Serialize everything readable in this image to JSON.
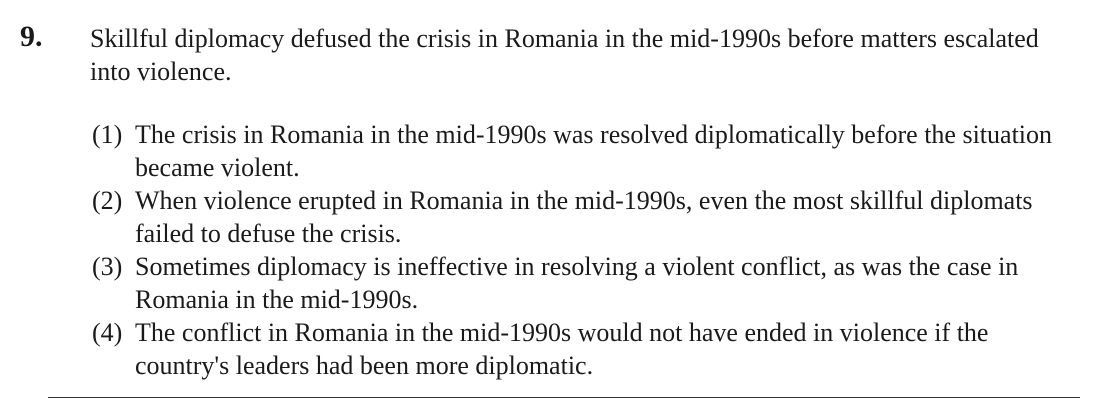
{
  "question": {
    "number": "9.",
    "stem": "Skillful diplomacy defused the crisis in Romania in the mid-1990s before matters escalated into violence.",
    "options": [
      {
        "label": "(1)",
        "text": "The crisis in Romania in the mid-1990s was resolved diplomatically before the situation became violent."
      },
      {
        "label": "(2)",
        "text": "When violence erupted in Romania in the mid-1990s, even the most skillful diplomats failed to defuse the crisis."
      },
      {
        "label": "(3)",
        "text": "Sometimes diplomacy is ineffective in resolving a violent conflict, as was the case in Romania in the mid-1990s."
      },
      {
        "label": "(4)",
        "text": "The conflict in Romania in the mid-1990s would not have ended in violence if the country's leaders had been more diplomatic."
      }
    ]
  }
}
